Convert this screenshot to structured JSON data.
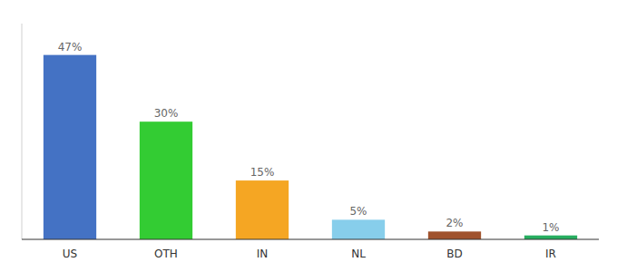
{
  "chart_data": {
    "type": "bar",
    "categories": [
      "US",
      "OTH",
      "IN",
      "NL",
      "BD",
      "IR"
    ],
    "values": [
      47,
      30,
      15,
      5,
      2,
      1
    ],
    "value_labels": [
      "47%",
      "30%",
      "15%",
      "5%",
      "2%",
      "1%"
    ],
    "colors": [
      "#4472c4",
      "#33cc33",
      "#f5a623",
      "#87ceeb",
      "#a0522d",
      "#27ae60"
    ],
    "ylim": [
      0,
      55
    ],
    "data_labels": true,
    "tick_labels": "x",
    "grid": false
  }
}
